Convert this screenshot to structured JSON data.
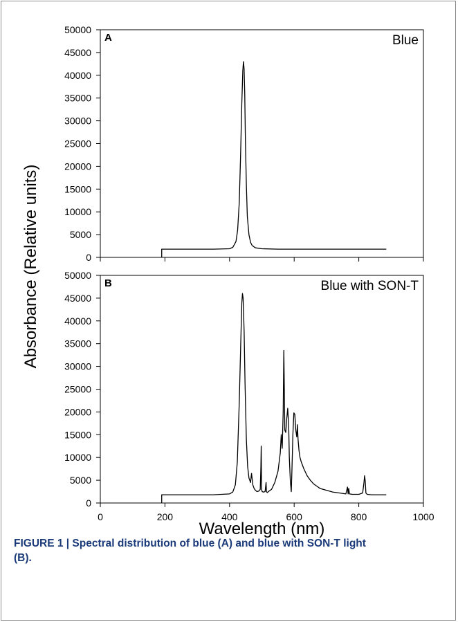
{
  "chart_data": [
    {
      "type": "line",
      "panel_label": "A",
      "title": "Blue",
      "ylim": [
        0,
        50000
      ],
      "yticks": [
        0,
        5000,
        10000,
        15000,
        20000,
        25000,
        30000,
        35000,
        40000,
        45000,
        50000
      ],
      "xlim": [
        0,
        1000
      ],
      "xticks": [
        0,
        200,
        400,
        600,
        800,
        1000
      ],
      "series": [
        {
          "x": [
            190,
            190,
            250,
            300,
            350,
            400,
            410,
            420,
            425,
            430,
            434,
            438,
            441,
            443,
            445,
            447,
            449,
            452,
            455,
            460,
            465,
            470,
            480,
            500,
            550,
            600,
            700,
            800,
            885
          ],
          "y": [
            0,
            1800,
            1800,
            1800,
            1800,
            1900,
            2200,
            3500,
            6000,
            12000,
            22000,
            34000,
            41000,
            43000,
            41500,
            36000,
            26000,
            16000,
            9000,
            5000,
            3300,
            2600,
            2100,
            1900,
            1800,
            1800,
            1800,
            1800,
            1800
          ]
        }
      ]
    },
    {
      "type": "line",
      "panel_label": "B",
      "title": "Blue with SON-T",
      "ylim": [
        0,
        50000
      ],
      "yticks": [
        0,
        5000,
        10000,
        15000,
        20000,
        25000,
        30000,
        35000,
        40000,
        45000,
        50000
      ],
      "xlim": [
        0,
        1000
      ],
      "xticks": [
        0,
        200,
        400,
        600,
        800,
        1000
      ],
      "series": [
        {
          "x": [
            190,
            190,
            250,
            300,
            350,
            400,
            410,
            418,
            424,
            430,
            435,
            438,
            440,
            442,
            445,
            448,
            452,
            456,
            460,
            465,
            468,
            472,
            476,
            480,
            485,
            490,
            495,
            497,
            498,
            499,
            501,
            505,
            510,
            513,
            514,
            515,
            517,
            520,
            530,
            540,
            550,
            557,
            560,
            563,
            566,
            568,
            569,
            571,
            574,
            577,
            580,
            583,
            585,
            588,
            591,
            593,
            596,
            599,
            602,
            605,
            608,
            610,
            612,
            615,
            618,
            622,
            630,
            640,
            650,
            660,
            670,
            680,
            700,
            720,
            740,
            760,
            765,
            767,
            769,
            771,
            780,
            800,
            812,
            816,
            818,
            820,
            822,
            826,
            840,
            860,
            885
          ],
          "y": [
            0,
            1800,
            1800,
            1800,
            1800,
            2000,
            2400,
            4000,
            9000,
            22000,
            36000,
            44000,
            46000,
            45000,
            38000,
            26000,
            14000,
            8000,
            5500,
            4500,
            6500,
            4000,
            3200,
            2800,
            2500,
            2600,
            3000,
            8000,
            12500,
            3000,
            2500,
            2400,
            2500,
            4500,
            2800,
            2400,
            2300,
            2500,
            3000,
            4500,
            7000,
            11000,
            15000,
            12000,
            20000,
            33500,
            28000,
            16000,
            15500,
            18500,
            20800,
            17000,
            10000,
            5000,
            2500,
            7000,
            15000,
            19800,
            19500,
            16000,
            14500,
            17200,
            14000,
            11500,
            10000,
            9000,
            7500,
            6000,
            5000,
            4200,
            3700,
            3200,
            2800,
            2400,
            2200,
            2000,
            3500,
            2000,
            3200,
            2000,
            1900,
            1900,
            2200,
            4500,
            6000,
            4800,
            2200,
            1900,
            1800,
            1800,
            1800
          ]
        }
      ]
    }
  ],
  "axes": {
    "ylabel": "Absorbance (Relative units)",
    "xlabel": "Wavelength (nm)"
  },
  "caption": "FIGURE 1 | Spectral distribution of blue (A) and blue with SON-T light (B)."
}
